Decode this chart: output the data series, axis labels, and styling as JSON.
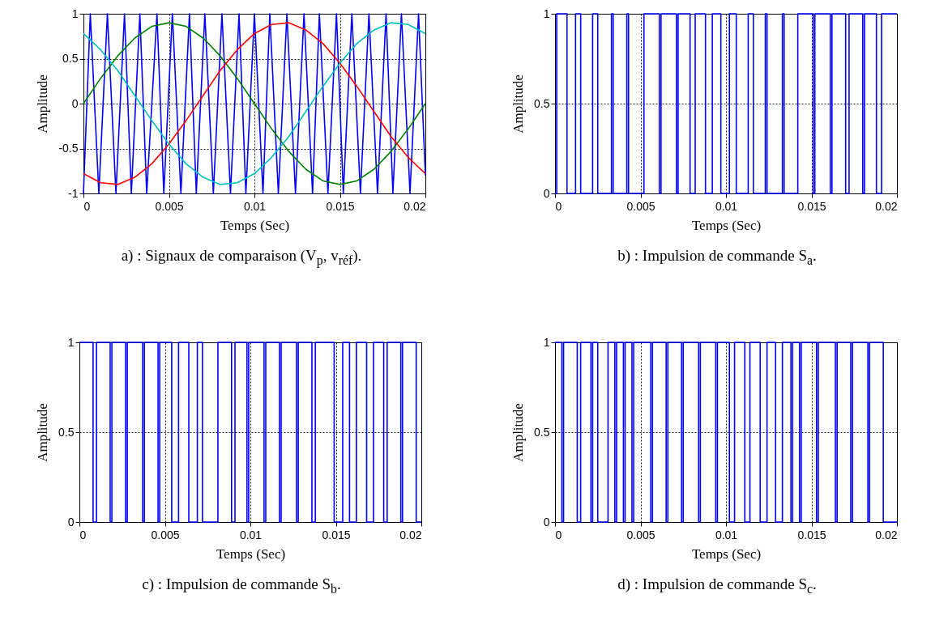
{
  "chart_data": [
    {
      "type": "line",
      "title": "a) : Signaux de comparaison (V$_{p}$, v$_{réf}$).",
      "xlabel": "Temps (Sec)",
      "ylabel": "Amplitude",
      "xlim": [
        0,
        0.02
      ],
      "xticks": [
        0,
        0.005,
        0.01,
        0.015,
        0.02
      ],
      "ylim": [
        -1,
        1
      ],
      "yticks": [
        -1,
        -0.5,
        0,
        0.5,
        1
      ],
      "grid": true,
      "x": [
        0,
        0.001,
        0.002,
        0.003,
        0.004,
        0.005,
        0.006,
        0.007,
        0.008,
        0.009,
        0.01,
        0.011,
        0.012,
        0.013,
        0.014,
        0.015,
        0.016,
        0.017,
        0.018,
        0.019,
        0.02
      ],
      "series": [
        {
          "color": "#0000ff",
          "x": [
            0,
            0.0004,
            0.0009,
            0.0014,
            0.0019,
            0.0024,
            0.0028,
            0.0033,
            0.0037,
            0.0043,
            0.0047,
            0.0052,
            0.0057,
            0.0062,
            0.0066,
            0.0071,
            0.0076,
            0.0081,
            0.0086,
            0.0091,
            0.0095,
            0.01,
            0.0105,
            0.0109,
            0.0114,
            0.0119,
            0.0124,
            0.0129,
            0.0134,
            0.0138,
            0.0143,
            0.0148,
            0.0152,
            0.0157,
            0.0162,
            0.0167,
            0.0172,
            0.0177,
            0.0181,
            0.0186,
            0.0191,
            0.0196,
            0.02
          ],
          "values": [
            -1,
            1,
            -1,
            1,
            -1,
            1,
            -1,
            1,
            -1,
            1,
            -1,
            1,
            -1,
            1,
            -1,
            1,
            -1,
            1,
            -1,
            1,
            -1,
            1,
            -1,
            1,
            -1,
            1,
            -1,
            1,
            -1,
            1,
            -1,
            1,
            -1,
            1,
            -1,
            1,
            -1,
            1,
            -1,
            1,
            -1,
            1,
            -0.8
          ]
        },
        {
          "color": "#008000",
          "values": [
            0,
            0.28,
            0.53,
            0.73,
            0.86,
            0.9,
            0.86,
            0.73,
            0.53,
            0.28,
            0,
            -0.28,
            -0.53,
            -0.73,
            -0.86,
            -0.9,
            -0.86,
            -0.73,
            -0.53,
            -0.28,
            0
          ]
        },
        {
          "color": "#ff0000",
          "values": [
            -0.78,
            -0.88,
            -0.9,
            -0.82,
            -0.67,
            -0.45,
            -0.19,
            0.09,
            0.37,
            0.6,
            0.78,
            0.88,
            0.9,
            0.82,
            0.67,
            0.45,
            0.19,
            -0.09,
            -0.37,
            -0.6,
            -0.78
          ]
        },
        {
          "color": "#00bfbf",
          "values": [
            0.78,
            0.6,
            0.37,
            0.09,
            -0.19,
            -0.45,
            -0.67,
            -0.82,
            -0.9,
            -0.88,
            -0.78,
            -0.6,
            -0.37,
            -0.09,
            0.19,
            0.45,
            0.67,
            0.82,
            0.9,
            0.88,
            0.78
          ]
        }
      ]
    },
    {
      "type": "step",
      "title": "b) : Impulsion de commande S$_{a}$.",
      "xlabel": "Temps (Sec)",
      "ylabel": "Amplitude",
      "xlim": [
        0,
        0.02
      ],
      "xticks": [
        0,
        0.005,
        0.01,
        0.015,
        0.02
      ],
      "ylim": [
        0,
        1
      ],
      "yticks": [
        0,
        0.5,
        1
      ],
      "grid": true,
      "series": [
        {
          "color": "#0000ff",
          "x": [
            0,
            0.0001,
            0.0007,
            0.0012,
            0.0015,
            0.0022,
            0.0025,
            0.0033,
            0.0034,
            0.0042,
            0.0043,
            0.0052,
            0.0061,
            0.0062,
            0.0071,
            0.0072,
            0.0079,
            0.0082,
            0.0088,
            0.0092,
            0.0097,
            0.0102,
            0.0106,
            0.0113,
            0.0116,
            0.0123,
            0.0124,
            0.0133,
            0.0134,
            0.0142,
            0.0151,
            0.0152,
            0.0161,
            0.0162,
            0.017,
            0.0172,
            0.018,
            0.0181,
            0.0188,
            0.0191,
            0.02
          ],
          "values": [
            0,
            1,
            0,
            1,
            0,
            1,
            0,
            1,
            0,
            1,
            0,
            1,
            0,
            1,
            0,
            1,
            0,
            1,
            0,
            1,
            0,
            1,
            0,
            1,
            0,
            1,
            0,
            1,
            0,
            1,
            0,
            1,
            0,
            1,
            0,
            1,
            0,
            1,
            0,
            1,
            1
          ]
        }
      ]
    },
    {
      "type": "step",
      "title": "c) : Impulsion de commande S$_{b}$.",
      "xlabel": "Temps (Sec)",
      "ylabel": "Amplitude",
      "xlim": [
        0,
        0.02
      ],
      "xticks": [
        0,
        0.005,
        0.01,
        0.015,
        0.02
      ],
      "ylim": [
        0,
        1
      ],
      "yticks": [
        0,
        0.5,
        1
      ],
      "grid": true,
      "series": [
        {
          "color": "#0000ff",
          "x": [
            0,
            0.0008,
            0.001,
            0.0018,
            0.0019,
            0.0027,
            0.0028,
            0.0037,
            0.0038,
            0.0046,
            0.0047,
            0.0054,
            0.0058,
            0.0064,
            0.0069,
            0.0072,
            0.0081,
            0.0089,
            0.0091,
            0.0098,
            0.0099,
            0.0108,
            0.0109,
            0.0117,
            0.0118,
            0.0127,
            0.0128,
            0.0136,
            0.0138,
            0.0149,
            0.0154,
            0.0158,
            0.0162,
            0.0168,
            0.0172,
            0.0178,
            0.018,
            0.0188,
            0.0189,
            0.0197,
            0.02
          ],
          "values": [
            1,
            0,
            1,
            0,
            1,
            0,
            1,
            0,
            1,
            0,
            1,
            0,
            1,
            0,
            1,
            0,
            1,
            0,
            1,
            0,
            1,
            0,
            1,
            0,
            1,
            0,
            1,
            0,
            1,
            0,
            1,
            0,
            1,
            0,
            1,
            0,
            1,
            0,
            1,
            0,
            0
          ]
        }
      ]
    },
    {
      "type": "step",
      "title": "d) : Impulsion de commande S$_{c}$.",
      "xlabel": "Temps (Sec)",
      "ylabel": "Amplitude",
      "xlim": [
        0,
        0.02
      ],
      "xticks": [
        0,
        0.005,
        0.01,
        0.015,
        0.02
      ],
      "ylim": [
        0,
        1
      ],
      "yticks": [
        0,
        0.5,
        1
      ],
      "grid": true,
      "series": [
        {
          "color": "#0000ff",
          "x": [
            0,
            0.0004,
            0.0005,
            0.0013,
            0.0015,
            0.0021,
            0.0022,
            0.0025,
            0.0031,
            0.0035,
            0.0036,
            0.004,
            0.0041,
            0.0045,
            0.0046,
            0.0056,
            0.0057,
            0.0065,
            0.0066,
            0.0074,
            0.0075,
            0.0084,
            0.0085,
            0.0094,
            0.0095,
            0.0102,
            0.0105,
            0.0111,
            0.0114,
            0.012,
            0.0124,
            0.0129,
            0.0133,
            0.0138,
            0.0139,
            0.0143,
            0.0144,
            0.0153,
            0.0154,
            0.0164,
            0.0165,
            0.0173,
            0.0174,
            0.0183,
            0.0184,
            0.0192,
            0.02
          ],
          "values": [
            1,
            0,
            1,
            0,
            1,
            0,
            1,
            0,
            1,
            0,
            1,
            0,
            1,
            0,
            1,
            0,
            1,
            0,
            1,
            0,
            1,
            0,
            1,
            0,
            1,
            0,
            1,
            0,
            1,
            0,
            1,
            0,
            1,
            0,
            1,
            0,
            1,
            0,
            1,
            0,
            1,
            0,
            1,
            0,
            1,
            0,
            0
          ]
        }
      ]
    }
  ]
}
